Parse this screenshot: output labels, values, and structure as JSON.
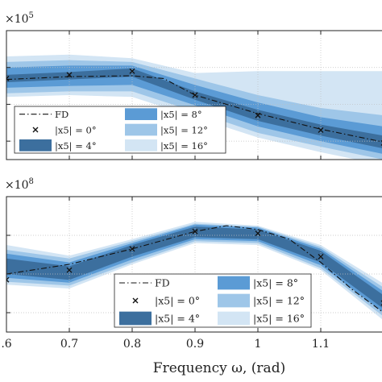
{
  "chart_data": [
    {
      "type": "area",
      "multiplier_label": "×10",
      "multiplier_exp": "5",
      "x": [
        0.6,
        0.7,
        0.8,
        0.9,
        1.0,
        1.1,
        1.2
      ],
      "xlim": [
        0.6,
        1.2
      ],
      "ylim": [
        0,
        7
      ],
      "grid": true,
      "legend_position": "bottom-left",
      "series": [
        {
          "name": "FD",
          "style": "dash-dot",
          "x": [
            0.6,
            0.7,
            0.8,
            0.85,
            0.9,
            1.0,
            1.1,
            1.2
          ],
          "values": [
            4.35,
            4.5,
            4.55,
            4.4,
            3.5,
            2.5,
            1.65,
            0.95
          ]
        },
        {
          "name": "|x5| = 0°",
          "style": "markers",
          "x": [
            0.6,
            0.7,
            0.8,
            0.9,
            1.0,
            1.1,
            1.2
          ],
          "values": [
            4.4,
            4.6,
            4.8,
            3.5,
            2.4,
            1.6,
            0.9
          ]
        },
        {
          "name": "|x5| = 4°",
          "style": "band",
          "color": "#3c6f9e",
          "lower": [
            4.2,
            4.35,
            4.5,
            3.25,
            2.1,
            1.3,
            0.6
          ],
          "upper": [
            4.6,
            4.75,
            4.95,
            3.7,
            2.7,
            1.9,
            1.3
          ]
        },
        {
          "name": "|x5| = 8°",
          "style": "band",
          "color": "#5b9bd5",
          "lower": [
            3.9,
            4.0,
            4.05,
            2.95,
            1.8,
            1.0,
            0.3
          ],
          "upper": [
            5.0,
            5.1,
            5.1,
            4.05,
            3.1,
            2.3,
            1.8
          ]
        },
        {
          "name": "|x5| = 12°",
          "style": "band",
          "color": "#9ec6e8",
          "lower": [
            3.6,
            3.7,
            3.7,
            2.6,
            1.45,
            0.7,
            0.0
          ],
          "upper": [
            5.3,
            5.4,
            5.3,
            4.4,
            3.5,
            2.8,
            2.4
          ]
        },
        {
          "name": "|x5| = 16°",
          "style": "band",
          "color": "#d3e5f4",
          "lower": [
            3.4,
            3.5,
            3.4,
            2.3,
            1.2,
            0.4,
            -0.3
          ],
          "upper": [
            5.6,
            5.7,
            5.5,
            4.7,
            4.8,
            4.8,
            4.8
          ]
        }
      ]
    },
    {
      "type": "area",
      "multiplier_label": "×10",
      "multiplier_exp": "8",
      "xlabel": "Frequency ω, (rad)",
      "x": [
        0.6,
        0.7,
        0.8,
        0.9,
        1.0,
        1.1,
        1.2
      ],
      "x_tick_labels": [
        ".6",
        "0.7",
        "0.8",
        "0.9",
        "1",
        "1.1"
      ],
      "xlim": [
        0.6,
        1.2
      ],
      "ylim": [
        0,
        7
      ],
      "grid": true,
      "legend_position": "bottom-right",
      "series": [
        {
          "name": "FD",
          "style": "dash-dot",
          "x": [
            0.6,
            0.7,
            0.8,
            0.9,
            0.95,
            1.0,
            1.05,
            1.1,
            1.15,
            1.2
          ],
          "values": [
            3.0,
            3.5,
            4.3,
            5.2,
            5.5,
            5.3,
            4.8,
            3.6,
            2.2,
            1.0
          ]
        },
        {
          "name": "|x5| = 0°",
          "style": "markers",
          "x": [
            0.6,
            0.7,
            0.8,
            0.9,
            1.0,
            1.1,
            1.2
          ],
          "values": [
            2.7,
            3.2,
            4.3,
            5.2,
            5.1,
            3.9,
            1.5
          ]
        },
        {
          "name": "|x5| = 4°",
          "style": "band",
          "color": "#3c6f9e",
          "lower": [
            3.0,
            2.7,
            3.9,
            4.9,
            4.8,
            3.6,
            1.2
          ],
          "upper": [
            3.8,
            3.4,
            4.5,
            5.45,
            5.3,
            4.2,
            1.9
          ]
        },
        {
          "name": "|x5| = 8°",
          "style": "band",
          "color": "#5b9bd5",
          "lower": [
            2.8,
            2.55,
            3.75,
            4.8,
            4.7,
            3.45,
            1.0
          ],
          "upper": [
            4.05,
            3.6,
            4.6,
            5.55,
            5.4,
            4.3,
            2.1
          ]
        },
        {
          "name": "|x5| = 12°",
          "style": "band",
          "color": "#9ec6e8",
          "lower": [
            2.6,
            2.4,
            3.6,
            4.7,
            4.6,
            3.3,
            0.8
          ],
          "upper": [
            4.25,
            3.8,
            4.7,
            5.6,
            5.45,
            4.4,
            2.3
          ]
        },
        {
          "name": "|x5| = 16°",
          "style": "band",
          "color": "#d3e5f4",
          "lower": [
            2.45,
            2.25,
            3.5,
            4.6,
            4.5,
            3.2,
            0.6
          ],
          "upper": [
            4.5,
            3.95,
            4.8,
            5.7,
            5.5,
            4.5,
            2.5
          ]
        }
      ]
    }
  ]
}
